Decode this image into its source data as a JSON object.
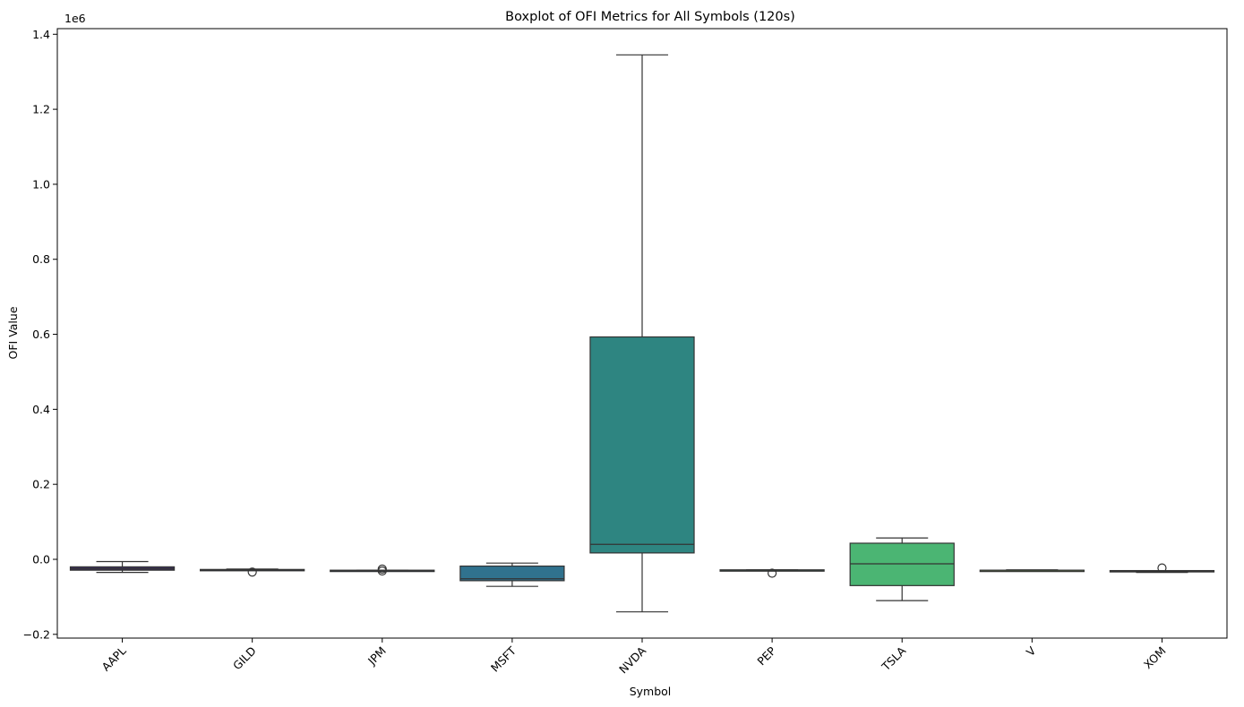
{
  "chart_data": {
    "type": "box",
    "title": "Boxplot of OFI Metrics for All Symbols (120s)",
    "xlabel": "Symbol",
    "ylabel": "OFI Value",
    "y_offset_label": "1e6",
    "ylim": [
      -0.21,
      1.415
    ],
    "y_ticks": [
      -0.2,
      0.0,
      0.2,
      0.4,
      0.6,
      0.8,
      1.0,
      1.2,
      1.4
    ],
    "y_tick_labels": [
      "−0.2",
      "0.0",
      "0.2",
      "0.4",
      "0.6",
      "0.8",
      "1.0",
      "1.2",
      "1.4"
    ],
    "grid": false,
    "categories": [
      "AAPL",
      "GILD",
      "JPM",
      "MSFT",
      "NVDA",
      "PEP",
      "TSLA",
      "V",
      "XOM"
    ],
    "boxes": [
      {
        "category": "AAPL",
        "color": "#3b2f5d",
        "whisker_low": -0.035,
        "q1": -0.029,
        "median": -0.025,
        "q3": -0.02,
        "whisker_high": -0.006,
        "outliers": []
      },
      {
        "category": "GILD",
        "color": "#3a4e7a",
        "whisker_low": -0.029,
        "q1": -0.029,
        "median": -0.028,
        "q3": -0.027,
        "whisker_high": -0.026,
        "outliers": [
          -0.034
        ]
      },
      {
        "category": "JPM",
        "color": "#375d86",
        "whisker_low": -0.031,
        "q1": -0.03,
        "median": -0.03,
        "q3": -0.029,
        "whisker_high": -0.029,
        "outliers": [
          -0.031,
          -0.026
        ]
      },
      {
        "category": "MSFT",
        "color": "#30728e",
        "whisker_low": -0.072,
        "q1": -0.057,
        "median": -0.052,
        "q3": -0.018,
        "whisker_high": -0.01,
        "outliers": []
      },
      {
        "category": "NVDA",
        "color": "#2e8581",
        "whisker_low": -0.14,
        "q1": 0.017,
        "median": 0.04,
        "q3": 0.593,
        "whisker_high": 1.345,
        "outliers": []
      },
      {
        "category": "PEP",
        "color": "#2f9a76",
        "whisker_low": -0.03,
        "q1": -0.03,
        "median": -0.029,
        "q3": -0.028,
        "whisker_high": -0.028,
        "outliers": [
          -0.037
        ]
      },
      {
        "category": "TSLA",
        "color": "#4bb573",
        "whisker_low": -0.11,
        "q1": -0.07,
        "median": -0.012,
        "q3": 0.043,
        "whisker_high": 0.057,
        "outliers": []
      },
      {
        "category": "V",
        "color": "#88c55a",
        "whisker_low": -0.03,
        "q1": -0.03,
        "median": -0.029,
        "q3": -0.029,
        "whisker_high": -0.028,
        "outliers": []
      },
      {
        "category": "XOM",
        "color": "#b8d43d",
        "whisker_low": -0.035,
        "q1": -0.033,
        "median": -0.032,
        "q3": -0.03,
        "whisker_high": -0.03,
        "outliers": [
          -0.023
        ]
      }
    ]
  }
}
